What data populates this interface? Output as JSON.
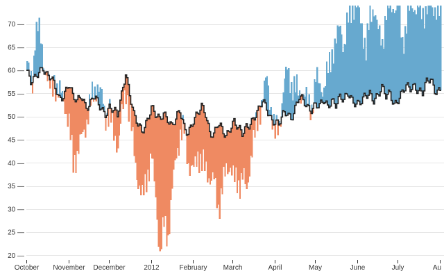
{
  "chart_data": {
    "type": "area",
    "x_start": "2011-10-01",
    "x_end": "2012-08-01",
    "xlim": [
      "2011-10-01",
      "2012-08-01"
    ],
    "ylim": [
      19,
      74
    ],
    "grid": true,
    "legend": "none",
    "title": "",
    "xlabel": "",
    "ylabel": "",
    "colors": {
      "above": "#67a9cf",
      "below": "#ef8a62",
      "line": "#222222"
    },
    "y_ticks": [
      {
        "label": "20 —",
        "value": 20
      },
      {
        "label": "25 —",
        "value": 25
      },
      {
        "label": "30 —",
        "value": 30
      },
      {
        "label": "35 —",
        "value": 35
      },
      {
        "label": "40 —",
        "value": 40
      },
      {
        "label": "45 —",
        "value": 45
      },
      {
        "label": "50 —",
        "value": 50
      },
      {
        "label": "55 —",
        "value": 55
      },
      {
        "label": "60 —",
        "value": 60
      },
      {
        "label": "65 —",
        "value": 65
      },
      {
        "label": "70 —",
        "value": 70
      }
    ],
    "x_ticks": [
      {
        "label": "October",
        "date": "2011-10-01"
      },
      {
        "label": "November",
        "date": "2011-11-01"
      },
      {
        "label": "December",
        "date": "2011-12-01"
      },
      {
        "label": "2012",
        "date": "2012-01-01"
      },
      {
        "label": "February",
        "date": "2012-02-01"
      },
      {
        "label": "March",
        "date": "2012-03-01"
      },
      {
        "label": "April",
        "date": "2012-04-01"
      },
      {
        "label": "May",
        "date": "2012-05-01"
      },
      {
        "label": "June",
        "date": "2012-06-01"
      },
      {
        "label": "July",
        "date": "2012-07-01"
      },
      {
        "label": "Au",
        "date": "2012-08-01"
      }
    ],
    "series": [
      {
        "key": "daily",
        "points": [
          [
            "2011-10-01",
            62
          ],
          [
            "2011-10-03",
            58
          ],
          [
            "2011-10-05",
            57
          ],
          [
            "2011-10-07",
            68
          ],
          [
            "2011-10-09",
            70
          ],
          [
            "2011-10-11",
            66
          ],
          [
            "2011-10-13",
            62
          ],
          [
            "2011-10-15",
            60
          ],
          [
            "2011-10-17",
            57
          ],
          [
            "2011-10-19",
            55
          ],
          [
            "2011-10-21",
            58
          ],
          [
            "2011-10-23",
            56
          ],
          [
            "2011-10-25",
            55
          ],
          [
            "2011-10-28",
            54
          ],
          [
            "2011-11-01",
            48
          ],
          [
            "2011-11-04",
            40
          ],
          [
            "2011-11-07",
            42
          ],
          [
            "2011-11-10",
            45
          ],
          [
            "2011-11-13",
            48
          ],
          [
            "2011-11-16",
            52
          ],
          [
            "2011-11-19",
            55
          ],
          [
            "2011-11-22",
            57
          ],
          [
            "2011-11-25",
            54
          ],
          [
            "2011-11-28",
            50
          ],
          [
            "2011-12-01",
            51
          ],
          [
            "2011-12-04",
            46
          ],
          [
            "2011-12-07",
            44
          ],
          [
            "2011-12-10",
            50
          ],
          [
            "2011-12-13",
            56
          ],
          [
            "2011-12-16",
            50
          ],
          [
            "2011-12-19",
            42
          ],
          [
            "2011-12-22",
            36
          ],
          [
            "2011-12-25",
            32
          ],
          [
            "2011-12-28",
            37
          ],
          [
            "2012-01-01",
            41
          ],
          [
            "2012-01-04",
            33
          ],
          [
            "2012-01-07",
            20
          ],
          [
            "2012-01-10",
            27
          ],
          [
            "2012-01-13",
            24
          ],
          [
            "2012-01-16",
            34
          ],
          [
            "2012-01-19",
            42
          ],
          [
            "2012-01-22",
            46
          ],
          [
            "2012-01-25",
            47
          ],
          [
            "2012-01-28",
            40
          ],
          [
            "2012-02-01",
            38
          ],
          [
            "2012-02-04",
            42
          ],
          [
            "2012-02-07",
            40
          ],
          [
            "2012-02-10",
            38
          ],
          [
            "2012-02-13",
            37
          ],
          [
            "2012-02-16",
            36
          ],
          [
            "2012-02-19",
            30
          ],
          [
            "2012-02-22",
            35
          ],
          [
            "2012-02-25",
            38
          ],
          [
            "2012-02-28",
            40
          ],
          [
            "2012-03-02",
            36
          ],
          [
            "2012-03-05",
            35
          ],
          [
            "2012-03-08",
            38
          ],
          [
            "2012-03-11",
            33
          ],
          [
            "2012-03-14",
            42
          ],
          [
            "2012-03-17",
            46
          ],
          [
            "2012-03-20",
            50
          ],
          [
            "2012-03-23",
            55
          ],
          [
            "2012-03-26",
            58
          ],
          [
            "2012-03-29",
            52
          ],
          [
            "2012-04-01",
            46
          ],
          [
            "2012-04-04",
            48
          ],
          [
            "2012-04-07",
            56
          ],
          [
            "2012-04-10",
            60
          ],
          [
            "2012-04-13",
            57
          ],
          [
            "2012-04-16",
            56
          ],
          [
            "2012-04-19",
            55
          ],
          [
            "2012-04-22",
            55
          ],
          [
            "2012-04-25",
            53
          ],
          [
            "2012-04-28",
            52
          ],
          [
            "2012-05-01",
            58
          ],
          [
            "2012-05-04",
            57
          ],
          [
            "2012-05-07",
            56
          ],
          [
            "2012-05-10",
            60
          ],
          [
            "2012-05-13",
            64
          ],
          [
            "2012-05-16",
            66
          ],
          [
            "2012-05-19",
            70
          ],
          [
            "2012-05-22",
            65
          ],
          [
            "2012-05-25",
            71
          ],
          [
            "2012-05-28",
            74
          ],
          [
            "2012-06-01",
            73
          ],
          [
            "2012-06-04",
            70
          ],
          [
            "2012-06-07",
            64
          ],
          [
            "2012-06-10",
            72
          ],
          [
            "2012-06-13",
            74
          ],
          [
            "2012-06-16",
            68
          ],
          [
            "2012-06-19",
            66
          ],
          [
            "2012-06-22",
            73
          ],
          [
            "2012-06-25",
            74
          ],
          [
            "2012-06-28",
            74
          ],
          [
            "2012-07-01",
            74
          ],
          [
            "2012-07-04",
            66
          ],
          [
            "2012-07-07",
            70
          ],
          [
            "2012-07-10",
            74
          ],
          [
            "2012-07-13",
            74
          ],
          [
            "2012-07-16",
            74
          ],
          [
            "2012-07-19",
            72
          ],
          [
            "2012-07-22",
            74
          ],
          [
            "2012-07-25",
            73
          ],
          [
            "2012-07-28",
            74
          ],
          [
            "2012-08-01",
            72
          ]
        ]
      },
      {
        "key": "baseline",
        "points": [
          [
            "2011-10-01",
            60
          ],
          [
            "2011-10-04",
            57
          ],
          [
            "2011-10-07",
            58
          ],
          [
            "2011-10-10",
            60
          ],
          [
            "2011-10-13",
            61
          ],
          [
            "2011-10-16",
            59
          ],
          [
            "2011-10-19",
            58
          ],
          [
            "2011-10-22",
            56
          ],
          [
            "2011-10-25",
            54
          ],
          [
            "2011-10-28",
            55
          ],
          [
            "2011-11-01",
            57
          ],
          [
            "2011-11-04",
            54
          ],
          [
            "2011-11-07",
            53
          ],
          [
            "2011-11-10",
            55
          ],
          [
            "2011-11-13",
            53
          ],
          [
            "2011-11-16",
            52
          ],
          [
            "2011-11-19",
            54
          ],
          [
            "2011-11-22",
            53
          ],
          [
            "2011-11-25",
            52
          ],
          [
            "2011-11-28",
            51
          ],
          [
            "2011-12-01",
            52
          ],
          [
            "2011-12-04",
            51
          ],
          [
            "2011-12-07",
            50
          ],
          [
            "2011-12-10",
            55
          ],
          [
            "2011-12-13",
            60
          ],
          [
            "2011-12-16",
            55
          ],
          [
            "2011-12-19",
            50
          ],
          [
            "2011-12-22",
            48
          ],
          [
            "2011-12-25",
            47
          ],
          [
            "2011-12-28",
            49
          ],
          [
            "2012-01-01",
            52
          ],
          [
            "2012-01-04",
            50
          ],
          [
            "2012-01-07",
            49
          ],
          [
            "2012-01-10",
            51
          ],
          [
            "2012-01-13",
            50
          ],
          [
            "2012-01-16",
            48
          ],
          [
            "2012-01-19",
            49
          ],
          [
            "2012-01-22",
            51
          ],
          [
            "2012-01-25",
            48
          ],
          [
            "2012-01-28",
            47
          ],
          [
            "2012-02-01",
            49
          ],
          [
            "2012-02-04",
            50
          ],
          [
            "2012-02-07",
            52
          ],
          [
            "2012-02-10",
            51
          ],
          [
            "2012-02-13",
            47
          ],
          [
            "2012-02-16",
            46
          ],
          [
            "2012-02-19",
            48
          ],
          [
            "2012-02-22",
            47
          ],
          [
            "2012-02-25",
            46
          ],
          [
            "2012-02-28",
            48
          ],
          [
            "2012-03-02",
            49
          ],
          [
            "2012-03-05",
            47
          ],
          [
            "2012-03-08",
            46
          ],
          [
            "2012-03-11",
            48
          ],
          [
            "2012-03-14",
            49
          ],
          [
            "2012-03-17",
            50
          ],
          [
            "2012-03-20",
            51
          ],
          [
            "2012-03-23",
            53
          ],
          [
            "2012-03-26",
            52
          ],
          [
            "2012-03-29",
            50
          ],
          [
            "2012-04-01",
            49
          ],
          [
            "2012-04-04",
            48
          ],
          [
            "2012-04-07",
            50
          ],
          [
            "2012-04-10",
            51
          ],
          [
            "2012-04-13",
            50
          ],
          [
            "2012-04-16",
            52
          ],
          [
            "2012-04-19",
            54
          ],
          [
            "2012-04-22",
            53
          ],
          [
            "2012-04-25",
            52
          ],
          [
            "2012-04-28",
            52
          ],
          [
            "2012-05-01",
            53
          ],
          [
            "2012-05-04",
            52
          ],
          [
            "2012-05-07",
            53
          ],
          [
            "2012-05-10",
            52
          ],
          [
            "2012-05-13",
            54
          ],
          [
            "2012-05-16",
            53
          ],
          [
            "2012-05-19",
            54
          ],
          [
            "2012-05-22",
            53
          ],
          [
            "2012-05-25",
            55
          ],
          [
            "2012-05-28",
            54
          ],
          [
            "2012-06-01",
            53
          ],
          [
            "2012-06-04",
            53
          ],
          [
            "2012-06-07",
            54
          ],
          [
            "2012-06-10",
            55
          ],
          [
            "2012-06-13",
            54
          ],
          [
            "2012-06-16",
            55
          ],
          [
            "2012-06-19",
            56
          ],
          [
            "2012-06-22",
            54
          ],
          [
            "2012-06-25",
            55
          ],
          [
            "2012-06-28",
            53
          ],
          [
            "2012-07-01",
            54
          ],
          [
            "2012-07-04",
            55
          ],
          [
            "2012-07-07",
            56
          ],
          [
            "2012-07-10",
            56
          ],
          [
            "2012-07-13",
            57
          ],
          [
            "2012-07-16",
            56
          ],
          [
            "2012-07-19",
            55
          ],
          [
            "2012-07-22",
            57
          ],
          [
            "2012-07-25",
            58
          ],
          [
            "2012-07-28",
            56
          ],
          [
            "2012-08-01",
            56
          ]
        ]
      }
    ]
  }
}
